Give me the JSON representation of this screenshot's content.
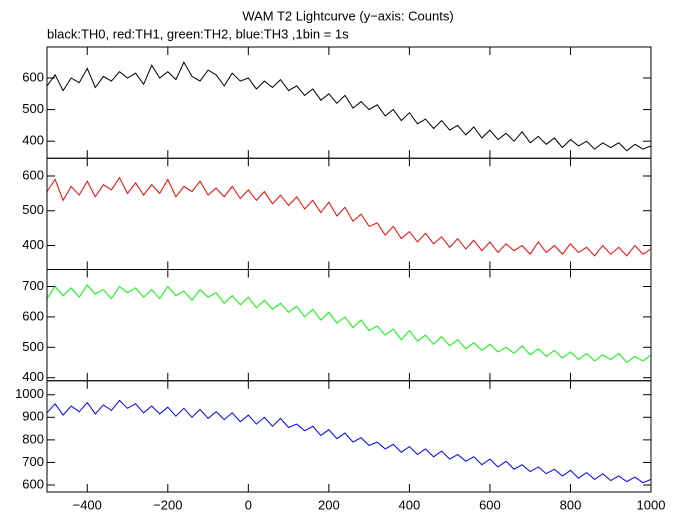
{
  "chart_data": {
    "type": "line",
    "title": "WAM T2 Lightcurve (y−axis: Counts)",
    "subtitle": "black:TH0, red:TH1, green:TH2, blue:TH3 ,1bin = 1s",
    "x": [
      -500,
      -480,
      -460,
      -440,
      -420,
      -400,
      -380,
      -360,
      -340,
      -320,
      -300,
      -280,
      -260,
      -240,
      -220,
      -200,
      -180,
      -160,
      -140,
      -120,
      -100,
      -80,
      -60,
      -40,
      -20,
      0,
      20,
      40,
      60,
      80,
      100,
      120,
      140,
      160,
      180,
      200,
      220,
      240,
      260,
      280,
      300,
      320,
      340,
      360,
      380,
      400,
      420,
      440,
      460,
      480,
      500,
      520,
      540,
      560,
      580,
      600,
      620,
      640,
      660,
      680,
      700,
      720,
      740,
      760,
      780,
      800,
      820,
      840,
      860,
      880,
      900,
      920,
      940,
      960,
      980,
      1000
    ],
    "xlim": [
      -500,
      1000
    ],
    "xticks": [
      {
        "value": -400,
        "label": "−400"
      },
      {
        "value": -200,
        "label": "−200"
      },
      0,
      200,
      400,
      600,
      800,
      1000
    ],
    "panels": [
      {
        "color": "#000000",
        "ylim": [
          346,
          698
        ],
        "yticks": [
          400,
          500,
          600
        ],
        "values": [
          575,
          610,
          560,
          600,
          585,
          630,
          570,
          605,
          590,
          620,
          600,
          615,
          580,
          640,
          600,
          620,
          595,
          650,
          605,
          590,
          625,
          610,
          575,
          615,
          590,
          600,
          565,
          590,
          570,
          595,
          560,
          575,
          545,
          565,
          530,
          550,
          520,
          545,
          505,
          525,
          500,
          515,
          480,
          500,
          465,
          490,
          455,
          470,
          440,
          465,
          435,
          450,
          420,
          445,
          410,
          435,
          405,
          425,
          400,
          430,
          395,
          415,
          390,
          410,
          380,
          405,
          385,
          400,
          375,
          395,
          380,
          395,
          370,
          390,
          375,
          385
        ]
      },
      {
        "color": "#ff0000",
        "ylim": [
          331,
          651
        ],
        "yticks": [
          400,
          500,
          600
        ],
        "values": [
          555,
          590,
          530,
          570,
          545,
          585,
          540,
          575,
          560,
          595,
          550,
          580,
          545,
          575,
          550,
          590,
          540,
          570,
          555,
          585,
          545,
          565,
          540,
          570,
          535,
          560,
          530,
          555,
          520,
          545,
          515,
          540,
          505,
          530,
          495,
          525,
          485,
          510,
          470,
          490,
          455,
          465,
          430,
          455,
          420,
          440,
          410,
          435,
          405,
          425,
          395,
          420,
          390,
          415,
          385,
          410,
          380,
          405,
          385,
          400,
          375,
          410,
          380,
          400,
          375,
          405,
          380,
          395,
          370,
          400,
          375,
          395,
          370,
          400,
          375,
          390
        ]
      },
      {
        "color": "#00ff00",
        "ylim": [
          390,
          756
        ],
        "yticks": [
          400,
          500,
          600,
          700
        ],
        "values": [
          660,
          700,
          670,
          695,
          665,
          705,
          675,
          690,
          660,
          700,
          680,
          695,
          665,
          690,
          660,
          700,
          670,
          685,
          655,
          690,
          665,
          680,
          645,
          670,
          640,
          665,
          630,
          655,
          625,
          645,
          615,
          635,
          600,
          625,
          590,
          615,
          580,
          600,
          565,
          590,
          555,
          570,
          540,
          560,
          525,
          555,
          520,
          540,
          510,
          535,
          505,
          525,
          495,
          515,
          490,
          510,
          485,
          500,
          480,
          505,
          475,
          495,
          470,
          490,
          465,
          485,
          460,
          480,
          455,
          475,
          460,
          480,
          450,
          470,
          455,
          475
        ]
      },
      {
        "color": "#0000ff",
        "ylim": [
          569,
          1062
        ],
        "yticks": [
          600,
          700,
          800,
          900,
          1000
        ],
        "values": [
          920,
          960,
          910,
          950,
          925,
          965,
          915,
          955,
          930,
          975,
          940,
          960,
          920,
          950,
          915,
          945,
          905,
          940,
          900,
          935,
          895,
          925,
          890,
          920,
          880,
          910,
          870,
          900,
          860,
          895,
          855,
          870,
          840,
          860,
          820,
          845,
          805,
          830,
          790,
          810,
          775,
          790,
          760,
          780,
          745,
          770,
          735,
          760,
          725,
          750,
          715,
          735,
          705,
          725,
          690,
          715,
          680,
          705,
          670,
          690,
          660,
          680,
          650,
          670,
          640,
          665,
          630,
          655,
          625,
          650,
          620,
          640,
          615,
          635,
          610,
          625
        ]
      }
    ]
  }
}
